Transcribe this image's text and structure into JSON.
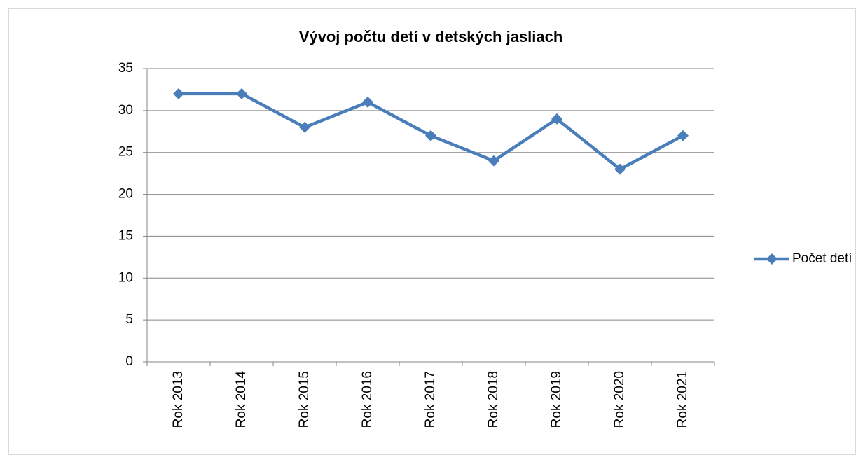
{
  "chart_data": {
    "type": "line",
    "title": "Vývoj počtu detí v detských jasliach",
    "categories": [
      "Rok 2013",
      "Rok 2014",
      "Rok 2015",
      "Rok 2016",
      "Rok 2017",
      "Rok 2018",
      "Rok 2019",
      "Rok 2020",
      "Rok 2021"
    ],
    "series": [
      {
        "name": "Počet detí",
        "color": "#4a7ebb",
        "values": [
          32,
          32,
          28,
          31,
          27,
          24,
          29,
          23,
          27
        ]
      }
    ],
    "ylim": [
      0,
      35
    ],
    "yticks": [
      0,
      5,
      10,
      15,
      20,
      25,
      30,
      35
    ],
    "grid": true,
    "legend": "right"
  }
}
